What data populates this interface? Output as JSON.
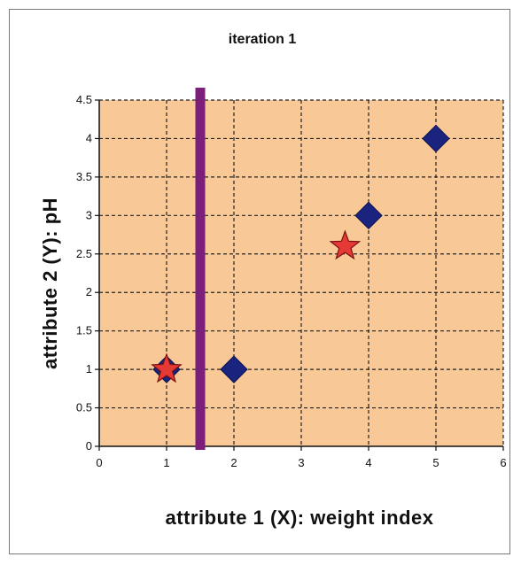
{
  "chart_data": {
    "type": "scatter",
    "title": "iteration 1",
    "xlabel": "attribute 1 (X): weight index",
    "ylabel": "attribute 2 (Y): pH",
    "xlim": [
      0,
      6
    ],
    "ylim": [
      0,
      4.5
    ],
    "x_ticks": [
      "0",
      "1",
      "2",
      "3",
      "4",
      "5",
      "6"
    ],
    "y_ticks": [
      "0",
      "0.5",
      "1",
      "1.5",
      "2",
      "2.5",
      "3",
      "3.5",
      "4",
      "4.5"
    ],
    "grid": true,
    "legend": "none",
    "plot_background": "#f8c896",
    "series": [
      {
        "marker": "diamond",
        "color": "#1a237e",
        "points": [
          {
            "x": 1,
            "y": 1
          },
          {
            "x": 2,
            "y": 1
          },
          {
            "x": 4,
            "y": 3
          },
          {
            "x": 5,
            "y": 4
          }
        ]
      },
      {
        "marker": "star",
        "color": "#e53935",
        "points": [
          {
            "x": 1,
            "y": 1
          },
          {
            "x": 3.65,
            "y": 2.6
          }
        ]
      }
    ],
    "annotations": [
      {
        "type": "vertical-line",
        "x": 1.5,
        "color": "#7b1f7b"
      }
    ]
  }
}
